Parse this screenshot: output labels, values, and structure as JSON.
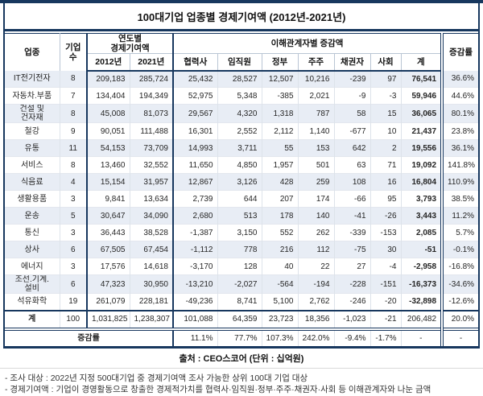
{
  "title": "100대기업 업종별 경제기여액 (2012년-2021년)",
  "colors": {
    "accent": "#17375E",
    "row_shade": "#E8EDF5"
  },
  "chart_data": {
    "type": "table",
    "title": "100대기업 업종별 경제기여액 (2012년-2021년)",
    "unit": "십억원",
    "source": "CEO스코어",
    "headers": {
      "industry": "업종",
      "count": "기업\n수",
      "yearly_group": "연도별\n경제기여액",
      "y2012": "2012년",
      "y2021": "2021년",
      "stakeholder_group": "이해관계자별 증감액",
      "partners": "협력사",
      "employees": "임직원",
      "government": "정부",
      "shareholders": "주주",
      "creditors": "채권자",
      "society": "사회",
      "total": "계",
      "change_rate": "증감률"
    },
    "rows": [
      {
        "name": "IT전기전자",
        "count": "8",
        "y2012": "209,183",
        "y2021": "285,724",
        "partners": "25,432",
        "employees": "28,527",
        "government": "12,507",
        "shareholders": "10,216",
        "creditors": "-239",
        "society": "97",
        "total": "76,541",
        "rate": "36.6%"
      },
      {
        "name": "자동차.부품",
        "count": "7",
        "y2012": "134,404",
        "y2021": "194,349",
        "partners": "52,975",
        "employees": "5,348",
        "government": "-385",
        "shareholders": "2,021",
        "creditors": "-9",
        "society": "-3",
        "total": "59,946",
        "rate": "44.6%"
      },
      {
        "name": "건설 및\n건자재",
        "count": "8",
        "y2012": "45,008",
        "y2021": "81,073",
        "partners": "29,567",
        "employees": "4,320",
        "government": "1,318",
        "shareholders": "787",
        "creditors": "58",
        "society": "15",
        "total": "36,065",
        "rate": "80.1%"
      },
      {
        "name": "철강",
        "count": "9",
        "y2012": "90,051",
        "y2021": "111,488",
        "partners": "16,301",
        "employees": "2,552",
        "government": "2,112",
        "shareholders": "1,140",
        "creditors": "-677",
        "society": "10",
        "total": "21,437",
        "rate": "23.8%"
      },
      {
        "name": "유통",
        "count": "11",
        "y2012": "54,153",
        "y2021": "73,709",
        "partners": "14,993",
        "employees": "3,711",
        "government": "55",
        "shareholders": "153",
        "creditors": "642",
        "society": "2",
        "total": "19,556",
        "rate": "36.1%"
      },
      {
        "name": "서비스",
        "count": "8",
        "y2012": "13,460",
        "y2021": "32,552",
        "partners": "11,650",
        "employees": "4,850",
        "government": "1,957",
        "shareholders": "501",
        "creditors": "63",
        "society": "71",
        "total": "19,092",
        "rate": "141.8%"
      },
      {
        "name": "식음료",
        "count": "4",
        "y2012": "15,154",
        "y2021": "31,957",
        "partners": "12,867",
        "employees": "3,126",
        "government": "428",
        "shareholders": "259",
        "creditors": "108",
        "society": "16",
        "total": "16,804",
        "rate": "110.9%"
      },
      {
        "name": "생활용품",
        "count": "3",
        "y2012": "9,841",
        "y2021": "13,634",
        "partners": "2,739",
        "employees": "644",
        "government": "207",
        "shareholders": "174",
        "creditors": "-66",
        "society": "95",
        "total": "3,793",
        "rate": "38.5%"
      },
      {
        "name": "운송",
        "count": "5",
        "y2012": "30,647",
        "y2021": "34,090",
        "partners": "2,680",
        "employees": "513",
        "government": "178",
        "shareholders": "140",
        "creditors": "-41",
        "society": "-26",
        "total": "3,443",
        "rate": "11.2%"
      },
      {
        "name": "통신",
        "count": "3",
        "y2012": "36,443",
        "y2021": "38,528",
        "partners": "-1,387",
        "employees": "3,150",
        "government": "552",
        "shareholders": "262",
        "creditors": "-339",
        "society": "-153",
        "total": "2,085",
        "rate": "5.7%"
      },
      {
        "name": "상사",
        "count": "6",
        "y2012": "67,505",
        "y2021": "67,454",
        "partners": "-1,112",
        "employees": "778",
        "government": "216",
        "shareholders": "112",
        "creditors": "-75",
        "society": "30",
        "total": "-51",
        "rate": "-0.1%"
      },
      {
        "name": "에너지",
        "count": "3",
        "y2012": "17,576",
        "y2021": "14,618",
        "partners": "-3,170",
        "employees": "128",
        "government": "40",
        "shareholders": "22",
        "creditors": "27",
        "society": "-4",
        "total": "-2,958",
        "rate": "-16.8%"
      },
      {
        "name": "조선.기계.\n설비",
        "count": "6",
        "y2012": "47,323",
        "y2021": "30,950",
        "partners": "-13,210",
        "employees": "-2,027",
        "government": "-564",
        "shareholders": "-194",
        "creditors": "-228",
        "society": "-151",
        "total": "-16,373",
        "rate": "-34.6%"
      },
      {
        "name": "석유화학",
        "count": "19",
        "y2012": "261,079",
        "y2021": "228,181",
        "partners": "-49,236",
        "employees": "8,741",
        "government": "5,100",
        "shareholders": "2,762",
        "creditors": "-246",
        "society": "-20",
        "total": "-32,898",
        "rate": "-12.6%"
      }
    ],
    "total_row": {
      "name": "계",
      "count": "100",
      "y2012": "1,031,825",
      "y2021": "1,238,307",
      "partners": "101,088",
      "employees": "64,359",
      "government": "23,723",
      "shareholders": "18,356",
      "creditors": "-1,023",
      "society": "-21",
      "total": "206,482",
      "rate": "20.0%"
    },
    "rate_row": {
      "label": "증감률",
      "partners": "11.1%",
      "employees": "77.7%",
      "government": "107.3%",
      "shareholders": "242.0%",
      "creditors": "-9.4%",
      "society": "-1.7%",
      "total": "-",
      "rate": "-"
    }
  },
  "footer": {
    "source": "출처 : CEO스코어 (단위 : 십억원)",
    "note1": "- 조사 대상  : 2022년 지정 500대기업 중 경제기여액 조사 가능한 상위 100대 기업 대상",
    "note2": "- 경제기여액 : 기업이 경영활동으로 창출한 경제적가치를 협력사·임직원·정부·주주·채권자·사회 등 이해관계자와 나눈 금액"
  }
}
